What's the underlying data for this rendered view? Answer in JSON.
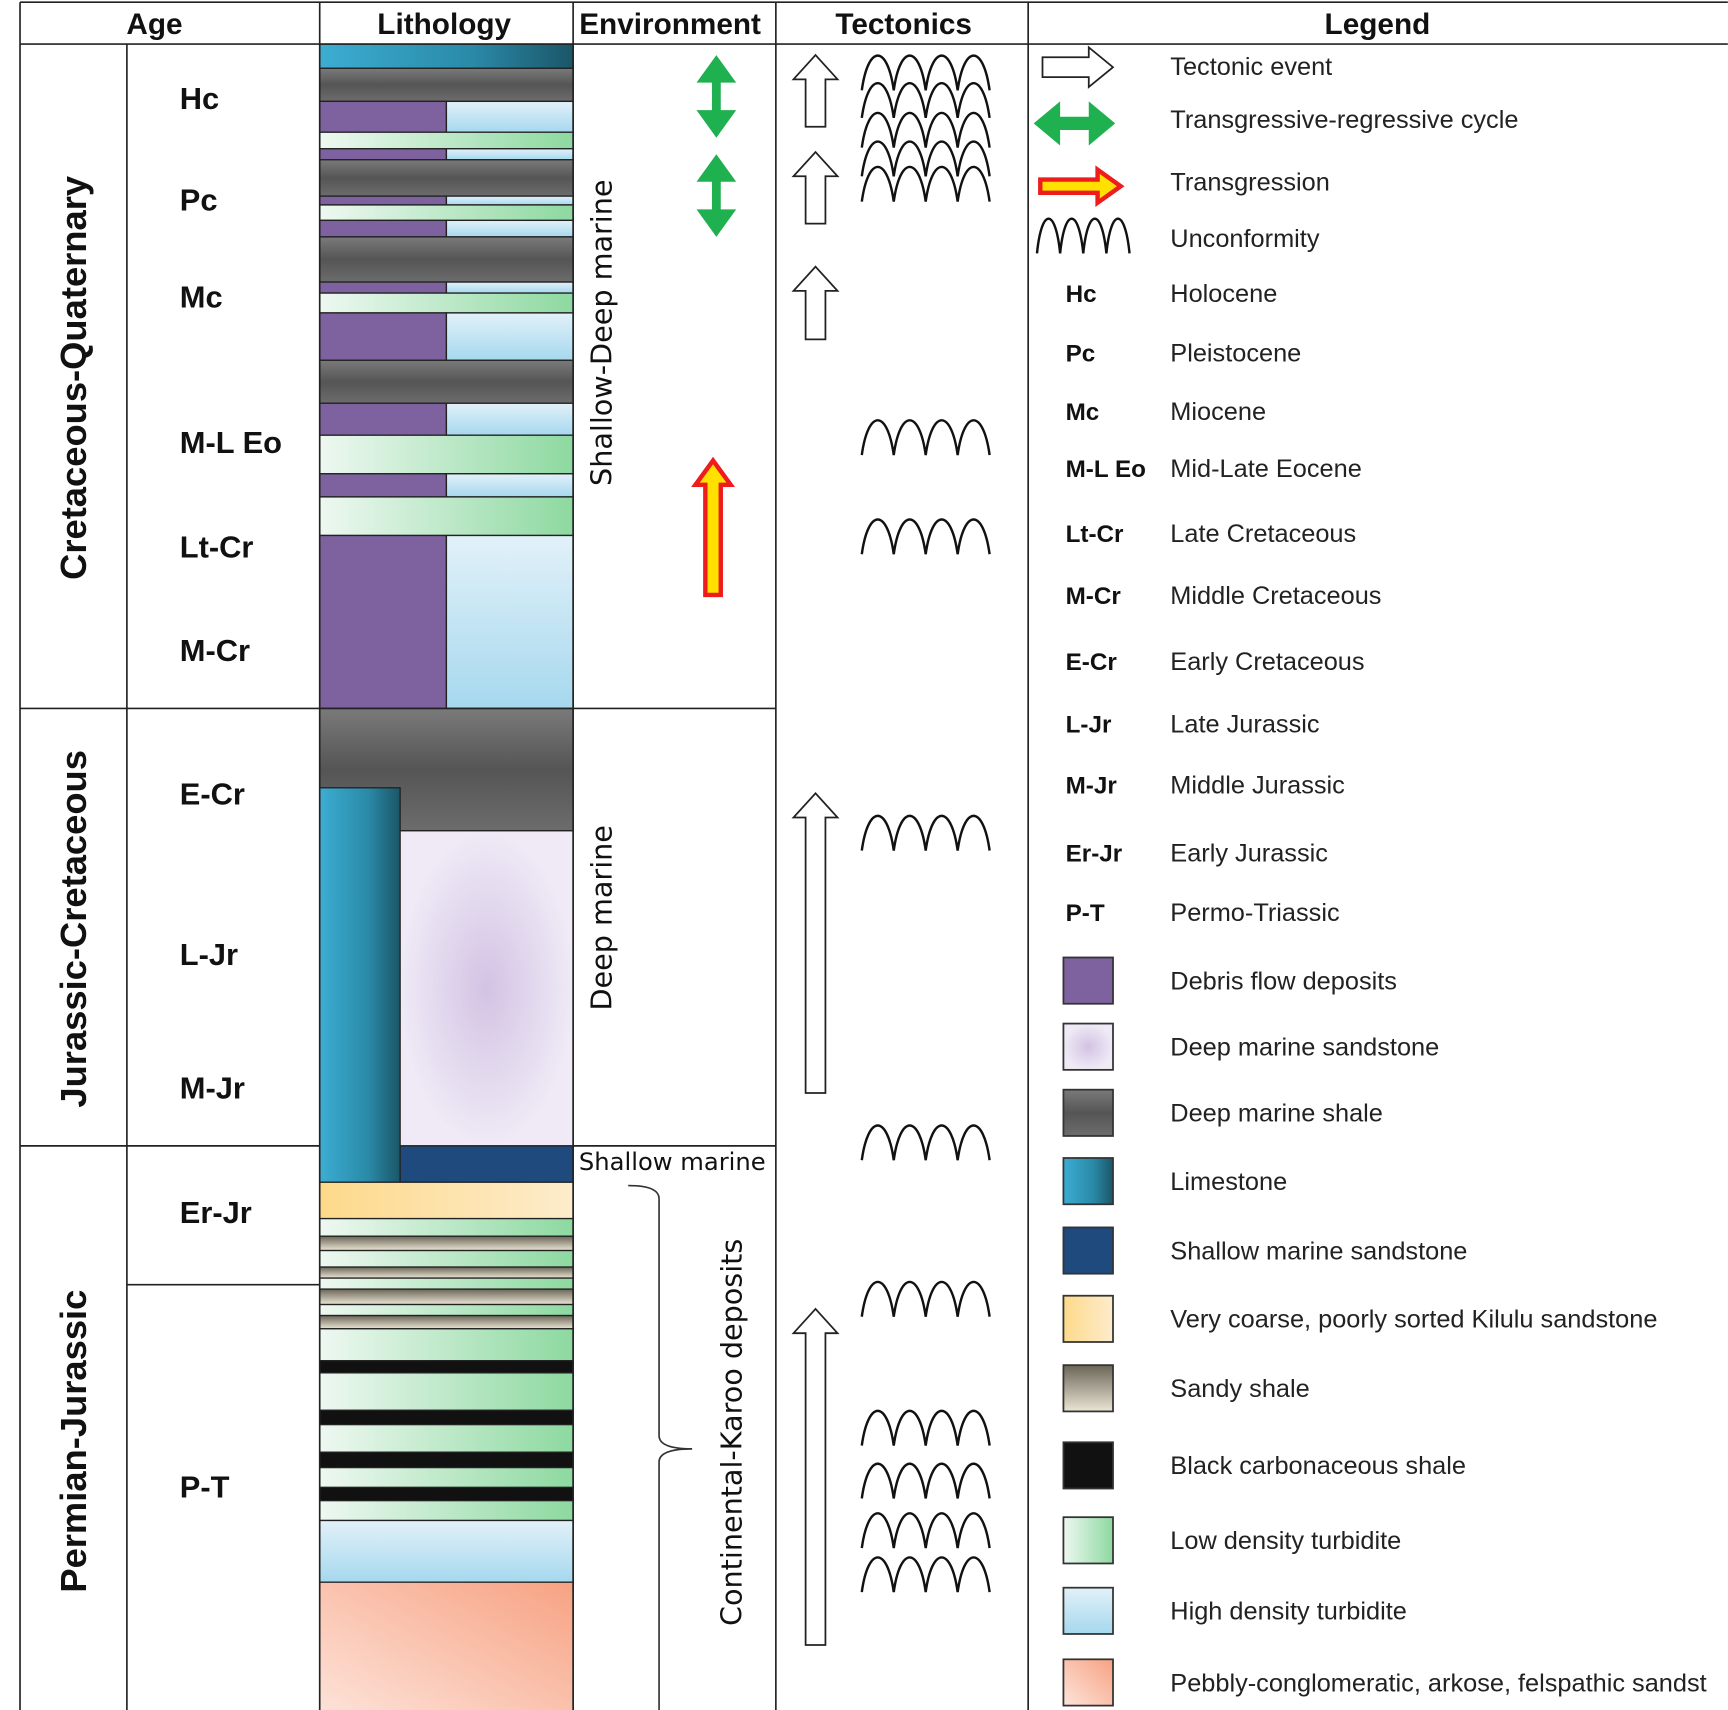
{
  "headers": {
    "age": "Age",
    "lithology": "Lithology",
    "environment": "Environment",
    "tectonics": "Tectonics",
    "legend": "Legend"
  },
  "eras": [
    "Cretaceous-Quaternary",
    "Jurassic-Cretaceous",
    "Permian-Jurassic"
  ],
  "ages": [
    "Hc",
    "Pc",
    "Mc",
    "M-L Eo",
    "Lt-Cr",
    "M-Cr",
    "E-Cr",
    "L-Jr",
    "M-Jr",
    "Er-Jr",
    "P-T"
  ],
  "environments": {
    "upper": "Shallow-Deep marine",
    "middle": "Deep marine",
    "shallow": "Shallow marine",
    "continental": "Continental-Karoo deposits"
  },
  "legend": {
    "symbols": [
      {
        "icon": "hollow-arrow-icon",
        "label": "Tectonic event"
      },
      {
        "icon": "double-arrow-icon",
        "label": "Transgressive-regressive cycle"
      },
      {
        "icon": "red-arrow-icon",
        "label": "Transgression"
      },
      {
        "icon": "unconformity-icon",
        "label": "Unconformity"
      }
    ],
    "abbreviations": [
      {
        "abbr": "Hc",
        "label": "Holocene"
      },
      {
        "abbr": "Pc",
        "label": "Pleistocene"
      },
      {
        "abbr": "Mc",
        "label": "Miocene"
      },
      {
        "abbr": "M-L Eo",
        "label": "Mid-Late Eocene"
      },
      {
        "abbr": "Lt-Cr",
        "label": "Late Cretaceous"
      },
      {
        "abbr": "M-Cr",
        "label": "Middle Cretaceous"
      },
      {
        "abbr": "E-Cr",
        "label": "Early Cretaceous"
      },
      {
        "abbr": "L-Jr",
        "label": "Late Jurassic"
      },
      {
        "abbr": "M-Jr",
        "label": "Middle Jurassic"
      },
      {
        "abbr": "Er-Jr",
        "label": "Early Jurassic"
      },
      {
        "abbr": "P-T",
        "label": "Permo-Triassic"
      }
    ],
    "lithologies": [
      {
        "key": "debris",
        "label": "Debris flow deposits"
      },
      {
        "key": "dms",
        "label": "Deep marine sandstone"
      },
      {
        "key": "shale",
        "label": "Deep marine shale"
      },
      {
        "key": "lime",
        "label": "Limestone"
      },
      {
        "key": "sms",
        "label": "Shallow marine sandstone"
      },
      {
        "key": "kilulu",
        "label": "Very coarse, poorly sorted Kilulu sandstone"
      },
      {
        "key": "sandy",
        "label": "Sandy shale"
      },
      {
        "key": "black",
        "label": "Black carbonaceous shale"
      },
      {
        "key": "ldt",
        "label": "Low density turbidite"
      },
      {
        "key": "hdt",
        "label": "High density turbidite"
      },
      {
        "key": "pebbly",
        "label": "Pebbly-conglomeratic, arkose, felspathic sandst"
      }
    ]
  },
  "colors": {
    "cycle_arrow": "#1fb050",
    "transgression": "#ee1c1c",
    "transgression_core": "#ffe000",
    "debris": "#7e62a0",
    "sms": "#1f4a7e",
    "black": "#111111"
  }
}
